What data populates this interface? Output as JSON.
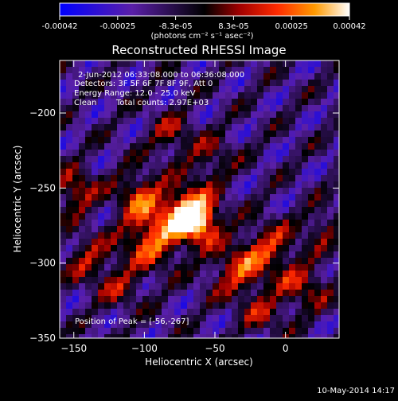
{
  "colorbar": {
    "tick_labels": [
      "-0.00042",
      "-0.00025",
      "-8.3e-05",
      "8.3e-05",
      "0.00025",
      "0.00042"
    ],
    "units_label": "(photons cm⁻² s⁻¹ asec⁻²)",
    "range": [
      -0.00042,
      0.00042
    ]
  },
  "plot": {
    "title": "Reconstructed RHESSI Image",
    "xlabel": "Heliocentric X (arcsec)",
    "ylabel": "Heliocentric Y (arcsec)",
    "x_ticks": [
      "-150",
      "-100",
      "-50",
      "0"
    ],
    "y_ticks": [
      "-200",
      "-250",
      "-300",
      "-350"
    ],
    "xlim": [
      -160,
      38
    ],
    "ylim": [
      -350,
      -165
    ]
  },
  "annotations": {
    "time_range": "2-Jun-2012 06:33:08.000 to 06:36:08.000",
    "detectors": "Detectors: 3F 5F 6F 7F 8F 9F, Att 0",
    "energy_range": "Energy Range: 12.0 - 25.0 keV",
    "method": "Clean",
    "total_counts": "Total counts: 2.97E+03",
    "peak": "Position of Peak = [-56,-267]"
  },
  "footer": {
    "date_stamp": "10-May-2014 14:17"
  },
  "colors": {
    "background": "#000000",
    "text": "#ffffff"
  }
}
